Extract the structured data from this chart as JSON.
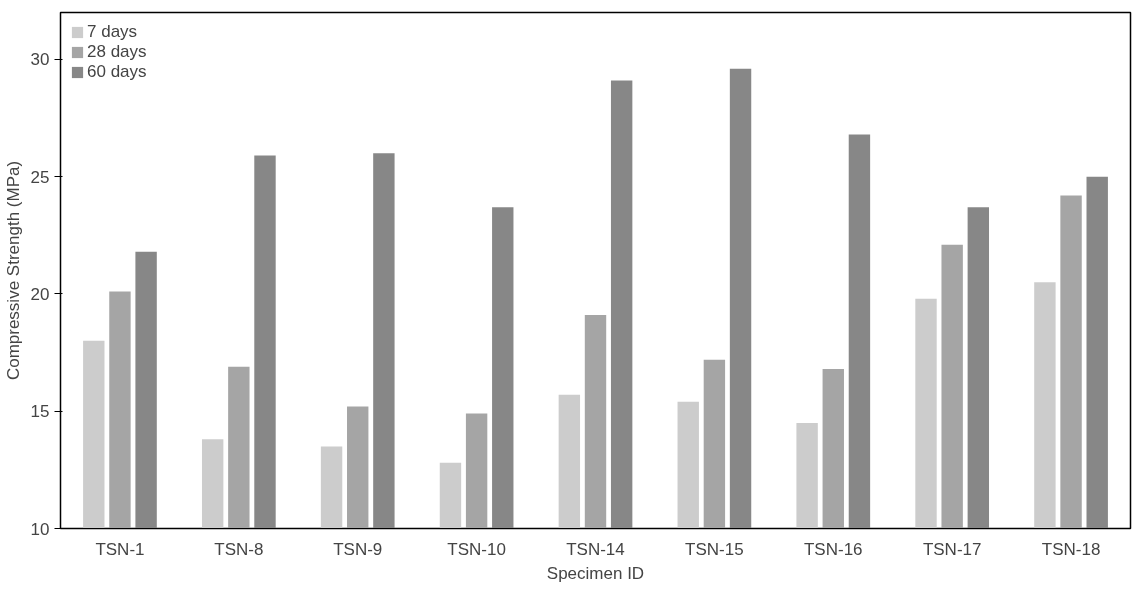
{
  "chart_data": {
    "type": "bar",
    "xlabel": "Specimen ID",
    "ylabel": "Compressive Strength (MPa)",
    "categories": [
      "TSN-1",
      "TSN-8",
      "TSN-9",
      "TSN-10",
      "TSN-14",
      "TSN-15",
      "TSN-16",
      "TSN-17",
      "TSN-18"
    ],
    "series": [
      {
        "name": "7 days",
        "color": "#cccccc",
        "values": [
          18.0,
          13.8,
          13.5,
          12.8,
          15.7,
          15.4,
          14.5,
          19.8,
          20.5
        ]
      },
      {
        "name": "28 days",
        "color": "#a5a5a5",
        "values": [
          20.1,
          16.9,
          15.2,
          14.9,
          19.1,
          17.2,
          16.8,
          22.1,
          24.2
        ]
      },
      {
        "name": "60 days",
        "color": "#878787",
        "values": [
          21.8,
          25.9,
          26.0,
          23.7,
          29.1,
          29.6,
          26.8,
          23.7,
          25.0
        ]
      }
    ],
    "ylim": [
      10,
      32
    ],
    "yticks": [
      10,
      15,
      20,
      25,
      30
    ],
    "grid": false,
    "legend": "top left"
  }
}
